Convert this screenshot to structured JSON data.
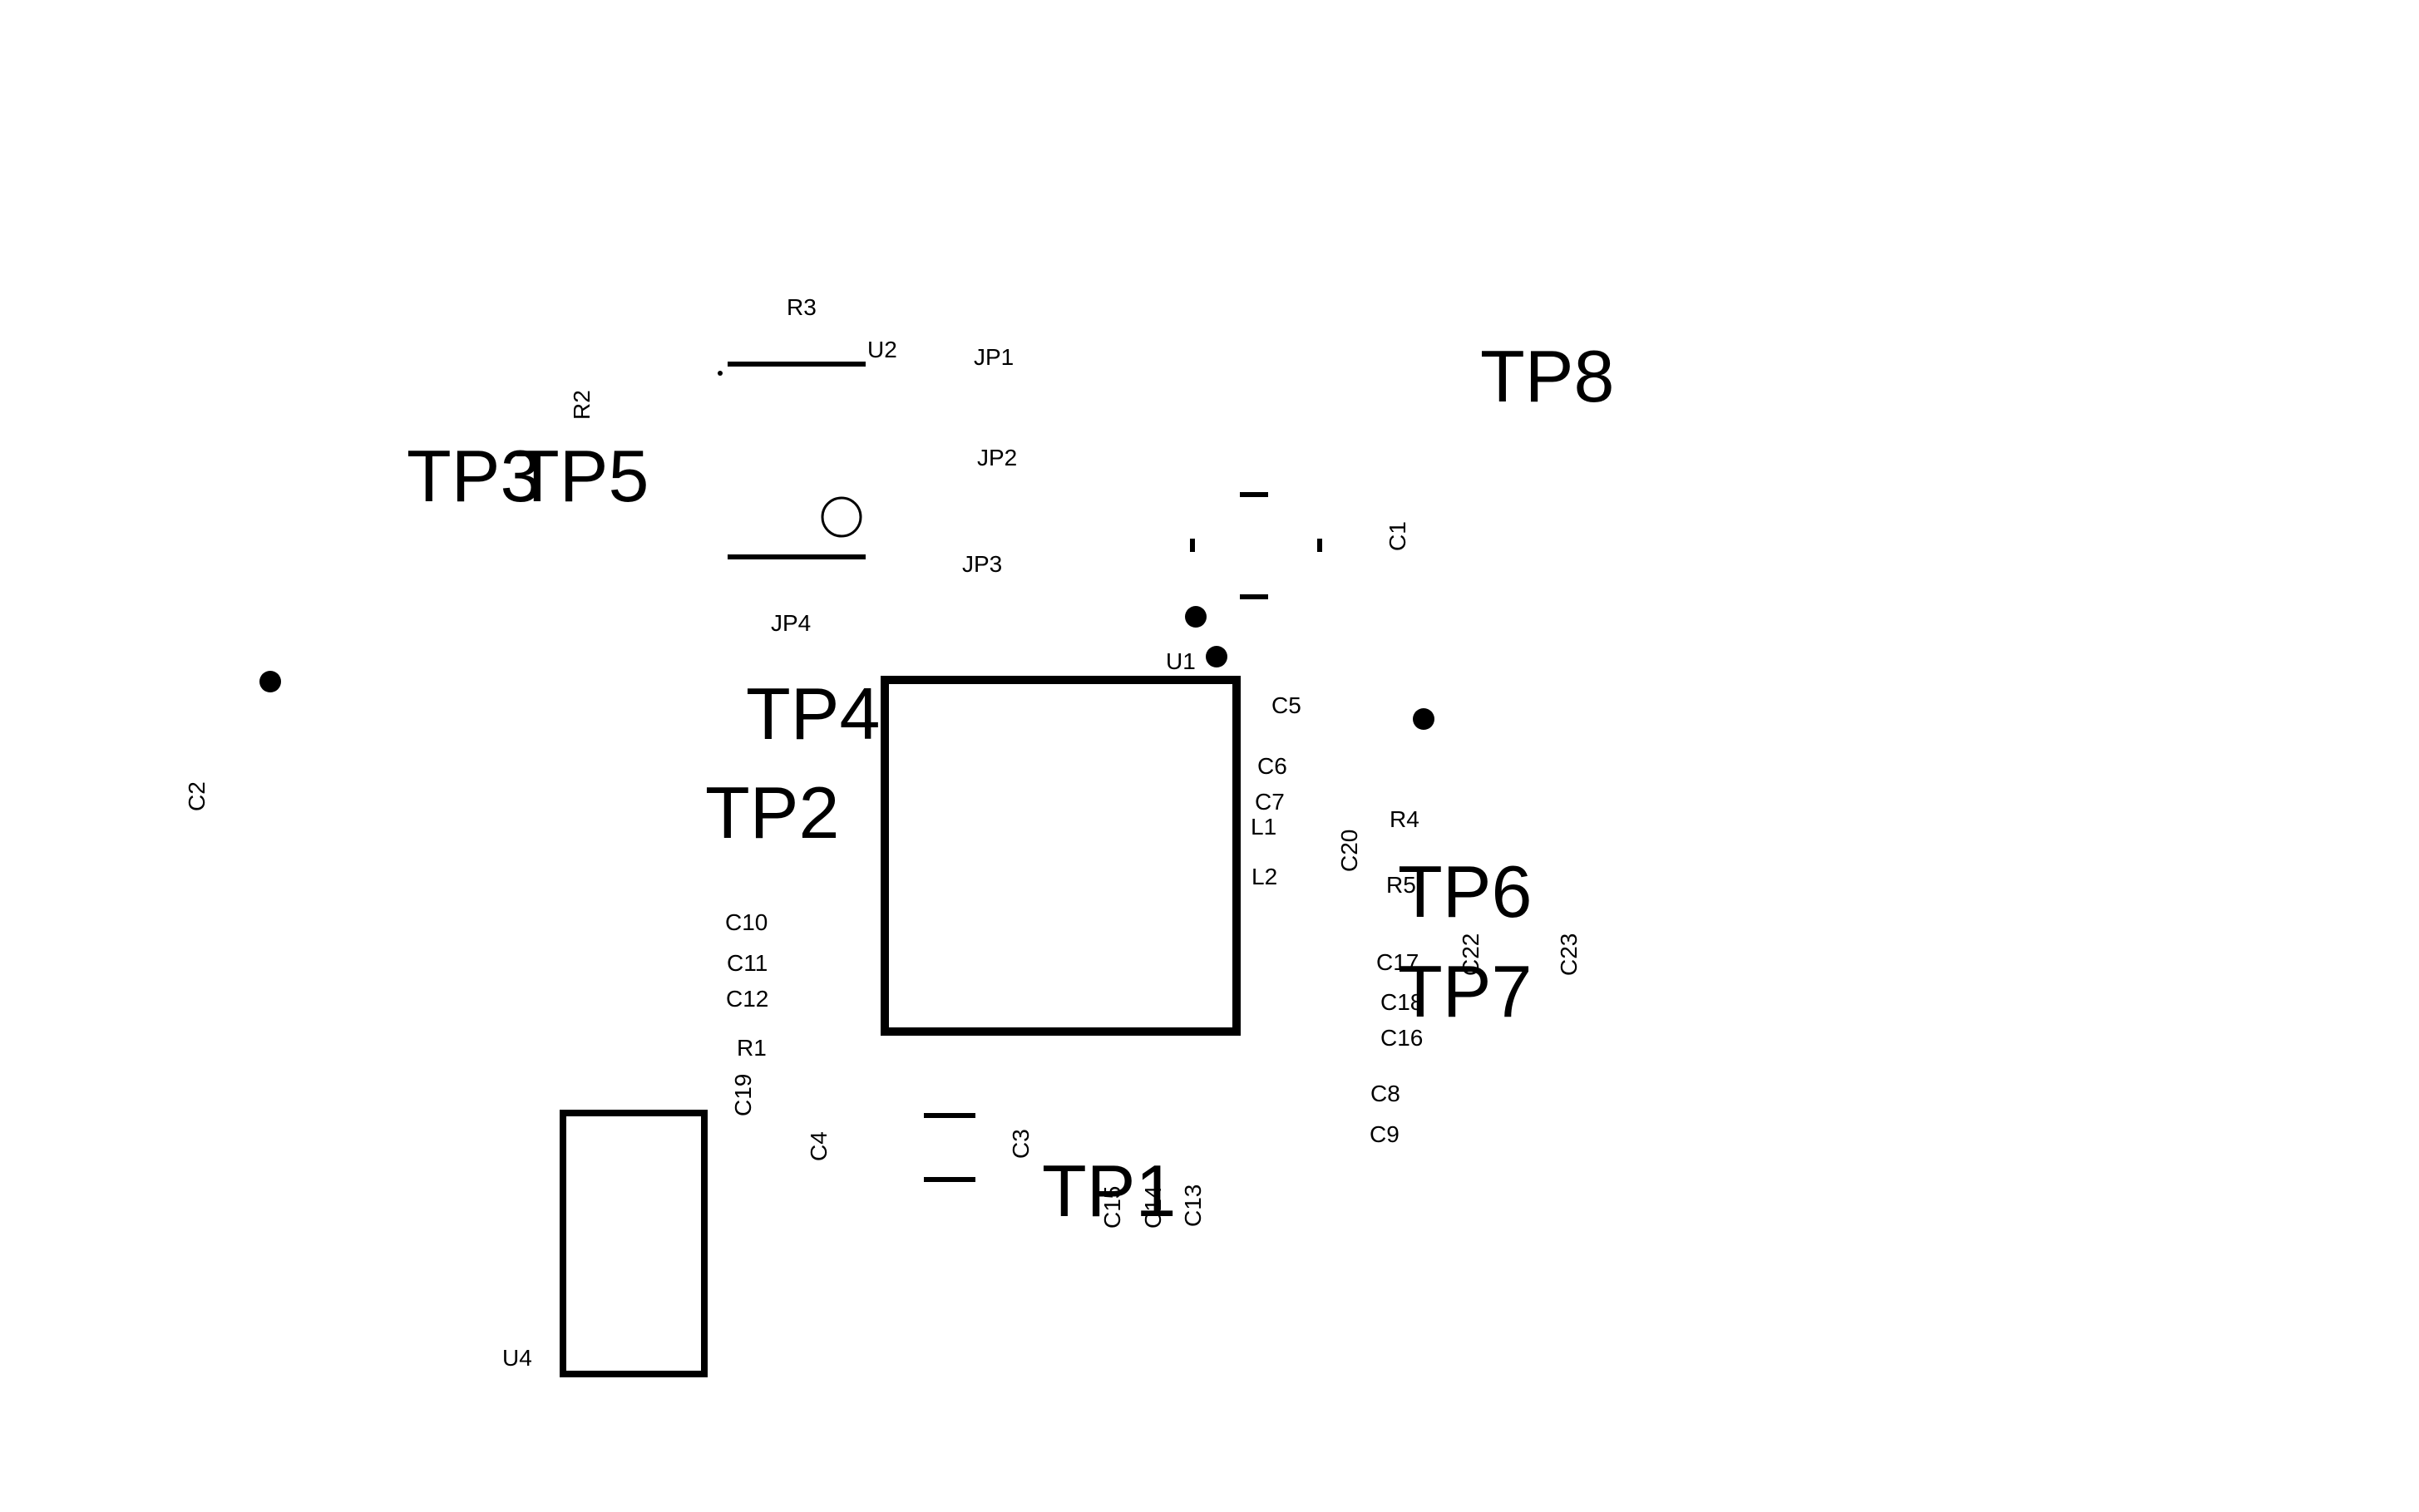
{
  "labels": {
    "R3": "R3",
    "U2": "U2",
    "JP1": "JP1",
    "R2": "R2",
    "TP8": "TP8",
    "TP3": "TP3",
    "TP5": "TP5",
    "JP2": "JP2",
    "C1": "C1",
    "JP3": "JP3",
    "JP4": "JP4",
    "U1": "U1",
    "TP4": "TP4",
    "C5": "C5",
    "C6": "C6",
    "C2": "C2",
    "TP2": "TP2",
    "C7": "C7",
    "L1": "L1",
    "R4": "R4",
    "C20": "C20",
    "L2": "L2",
    "R5": "R5",
    "TP6": "TP6",
    "C10": "C10",
    "C22": "C22",
    "C23": "C23",
    "C11": "C11",
    "C17": "C17",
    "C18": "C18",
    "TP7": "TP7",
    "C12": "C12",
    "C16": "C16",
    "R1": "R1",
    "C19": "C19",
    "C8": "C8",
    "C4": "C4",
    "C3": "C3",
    "C9": "C9",
    "TP1": "TP1",
    "C15": "C15",
    "C14": "C14",
    "C13": "C13",
    "U4": "U4"
  },
  "colors": {
    "ink": "#000000",
    "background": "#ffffff"
  }
}
